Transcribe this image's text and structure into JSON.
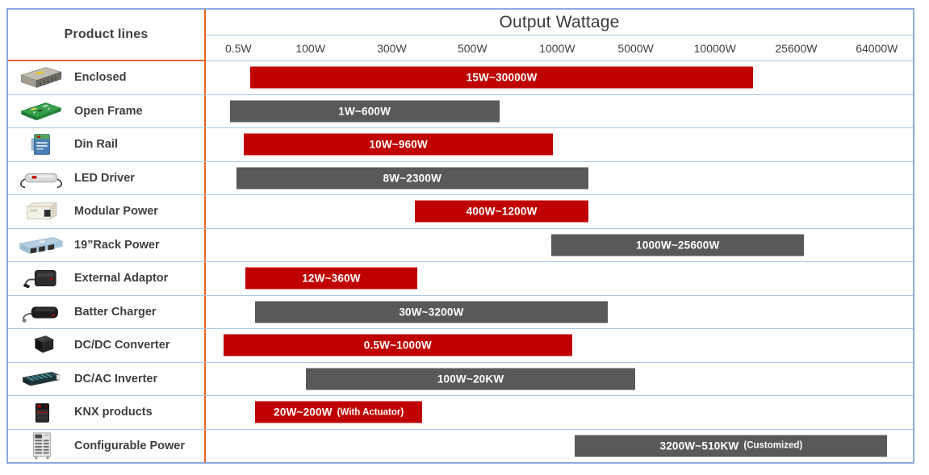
{
  "colors": {
    "bar_red": "#C00000",
    "bar_gray": "#595959",
    "grid_line": "#A9C8E8",
    "outer_border": "#8FAADC",
    "divider_orange": "#E8611F",
    "text_dark": "#3F3F3F",
    "bar_text": "#FFFFFF"
  },
  "chart_data": {
    "type": "bar",
    "variant": "horizontal-range-gantt",
    "title": "Output Wattage",
    "category_header": "Product lines",
    "x_tick_labels": [
      "0.5W",
      "100W",
      "300W",
      "500W",
      "1000W",
      "5000W",
      "10000W",
      "25600W",
      "64000W"
    ],
    "x_scale": "nonlinear-logarithmic",
    "grid": "row-separators-only",
    "rows": [
      {
        "category": "Enclosed",
        "icon": "enclosed-psu-icon",
        "label": "15W~30000W",
        "note": "",
        "min_watts": 15,
        "max_watts": 30000,
        "color": "#C00000",
        "bar_left_pct": 6.3,
        "bar_width_pct": 71.1
      },
      {
        "category": "Open Frame",
        "icon": "open-frame-psu-icon",
        "label": "1W~600W",
        "note": "",
        "min_watts": 1,
        "max_watts": 600,
        "color": "#595959",
        "bar_left_pct": 3.4,
        "bar_width_pct": 38.1
      },
      {
        "category": "Din Rail",
        "icon": "din-rail-psu-icon",
        "label": "10W~960W",
        "note": "",
        "min_watts": 10,
        "max_watts": 960,
        "color": "#C00000",
        "bar_left_pct": 5.4,
        "bar_width_pct": 43.7
      },
      {
        "category": "LED Driver",
        "icon": "led-driver-icon",
        "label": "8W~2300W",
        "note": "",
        "min_watts": 8,
        "max_watts": 2300,
        "color": "#595959",
        "bar_left_pct": 4.3,
        "bar_width_pct": 49.8
      },
      {
        "category": "Modular Power",
        "icon": "modular-psu-icon",
        "label": "400W~1200W",
        "note": "",
        "min_watts": 400,
        "max_watts": 1200,
        "color": "#C00000",
        "bar_left_pct": 29.6,
        "bar_width_pct": 24.5
      },
      {
        "category": "19”Rack Power",
        "icon": "rack-psu-icon",
        "label": "1000W~25600W",
        "note": "",
        "min_watts": 1000,
        "max_watts": 25600,
        "color": "#595959",
        "bar_left_pct": 48.9,
        "bar_width_pct": 35.7
      },
      {
        "category": "External Adaptor",
        "icon": "external-adaptor-icon",
        "label": "12W~360W",
        "note": "",
        "min_watts": 12,
        "max_watts": 360,
        "color": "#C00000",
        "bar_left_pct": 5.6,
        "bar_width_pct": 24.3
      },
      {
        "category": "Batter Charger",
        "icon": "battery-charger-icon",
        "label": "30W~3200W",
        "note": "",
        "min_watts": 30,
        "max_watts": 3200,
        "color": "#595959",
        "bar_left_pct": 7.0,
        "bar_width_pct": 49.8
      },
      {
        "category": "DC/DC Converter",
        "icon": "dcdc-converter-icon",
        "label": "0.5W~1000W",
        "note": "",
        "min_watts": 0.5,
        "max_watts": 1000,
        "color": "#C00000",
        "bar_left_pct": 2.5,
        "bar_width_pct": 49.3
      },
      {
        "category": "DC/AC Inverter",
        "icon": "dcac-inverter-icon",
        "label": "100W~20KW",
        "note": "",
        "min_watts": 100,
        "max_watts": 20000,
        "color": "#595959",
        "bar_left_pct": 14.2,
        "bar_width_pct": 46.5
      },
      {
        "category": "KNX products",
        "icon": "knx-product-icon",
        "label": "20W~200W",
        "note": "(With Actuator)",
        "min_watts": 20,
        "max_watts": 200,
        "color": "#C00000",
        "bar_left_pct": 7.0,
        "bar_width_pct": 23.6
      },
      {
        "category": "Configurable Power",
        "icon": "configurable-psu-icon",
        "label": "3200W~510KW",
        "note": "(Customized)",
        "min_watts": 3200,
        "max_watts": 510000,
        "color": "#595959",
        "bar_left_pct": 52.2,
        "bar_width_pct": 44.2
      }
    ]
  }
}
